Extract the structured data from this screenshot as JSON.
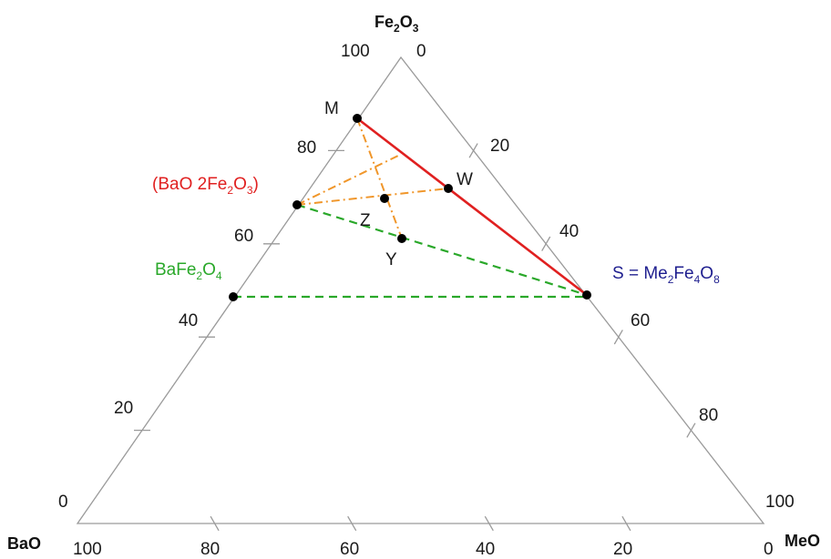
{
  "colors": {
    "frame": "#9a9a9a",
    "red": "#e02020",
    "green": "#2aa82a",
    "orange": "#f0962a",
    "navy": "#1f1f8f",
    "point": "#000000"
  },
  "vertices": {
    "top": {
      "base": "Fe",
      "s1": "2",
      "mid": "O",
      "s2": "3"
    },
    "left": "BaO",
    "right": "MeO"
  },
  "ticks": {
    "left": [
      "0",
      "20",
      "40",
      "60",
      "80",
      "100"
    ],
    "right": [
      "0",
      "20",
      "40",
      "60",
      "80",
      "100"
    ],
    "bottom": [
      "100",
      "80",
      "60",
      "40",
      "20",
      "0"
    ]
  },
  "labels": {
    "M": "M",
    "W": "W",
    "Z": "Z",
    "Y": "Y",
    "baO2fe": {
      "a": "(BaO 2Fe",
      "s1": "2",
      "b": "O",
      "s2": "3",
      "c": ")"
    },
    "bafe": {
      "a": "BaFe",
      "s1": "2",
      "b": "O",
      "s2": "4"
    },
    "s": {
      "a": "S = Me",
      "s1": "2",
      "b": "Fe",
      "s2": "4",
      "c": "O",
      "s3": "8"
    }
  }
}
